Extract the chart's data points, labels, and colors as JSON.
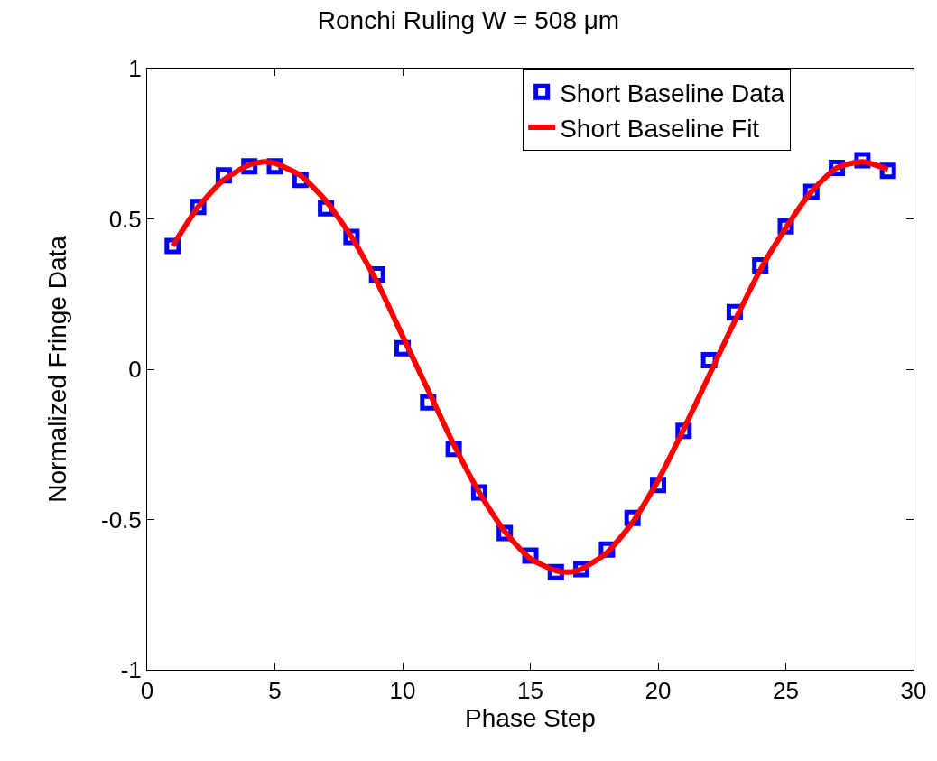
{
  "chart_data": {
    "type": "scatter",
    "title": "Ronchi Ruling W = 508 μm",
    "xlabel": "Phase Step",
    "ylabel": "Normalized Fringe Data",
    "xlim": [
      0,
      30
    ],
    "xticks": [
      0,
      5,
      10,
      15,
      20,
      25,
      30
    ],
    "ylim": [
      -1,
      1
    ],
    "yticks": [
      -1,
      -0.5,
      0,
      0.5,
      1
    ],
    "legend": "top right",
    "series": [
      {
        "name": "Short Baseline Data",
        "marker": "square",
        "color": "#0000ff",
        "x": [
          1,
          2,
          3,
          4,
          5,
          6,
          7,
          8,
          9,
          10,
          11,
          12,
          13,
          14,
          15,
          16,
          17,
          18,
          19,
          20,
          21,
          22,
          23,
          24,
          25,
          26,
          27,
          28,
          29
        ],
        "values": [
          0.41,
          0.54,
          0.645,
          0.675,
          0.675,
          0.63,
          0.535,
          0.44,
          0.315,
          0.07,
          -0.11,
          -0.265,
          -0.41,
          -0.545,
          -0.62,
          -0.675,
          -0.665,
          -0.6,
          -0.495,
          -0.385,
          -0.205,
          0.03,
          0.19,
          0.345,
          0.475,
          0.59,
          0.67,
          0.695,
          0.66
        ]
      },
      {
        "name": "Short Baseline Fit",
        "type": "line",
        "marker": "none",
        "line_style": "solid",
        "color": "#ff0000",
        "x": [
          1,
          2,
          3,
          4,
          4.6,
          5,
          6,
          7,
          8,
          9,
          10,
          11,
          12,
          13,
          14,
          15,
          16,
          16.5,
          17,
          18,
          19,
          20,
          21,
          22,
          23,
          24,
          25,
          26,
          27,
          28,
          29
        ],
        "values": [
          0.41,
          0.54,
          0.63,
          0.68,
          0.69,
          0.685,
          0.645,
          0.56,
          0.44,
          0.29,
          0.11,
          -0.07,
          -0.25,
          -0.41,
          -0.54,
          -0.63,
          -0.67,
          -0.675,
          -0.665,
          -0.61,
          -0.51,
          -0.37,
          -0.2,
          -0.02,
          0.16,
          0.33,
          0.47,
          0.59,
          0.67,
          0.69,
          0.665
        ]
      }
    ]
  }
}
